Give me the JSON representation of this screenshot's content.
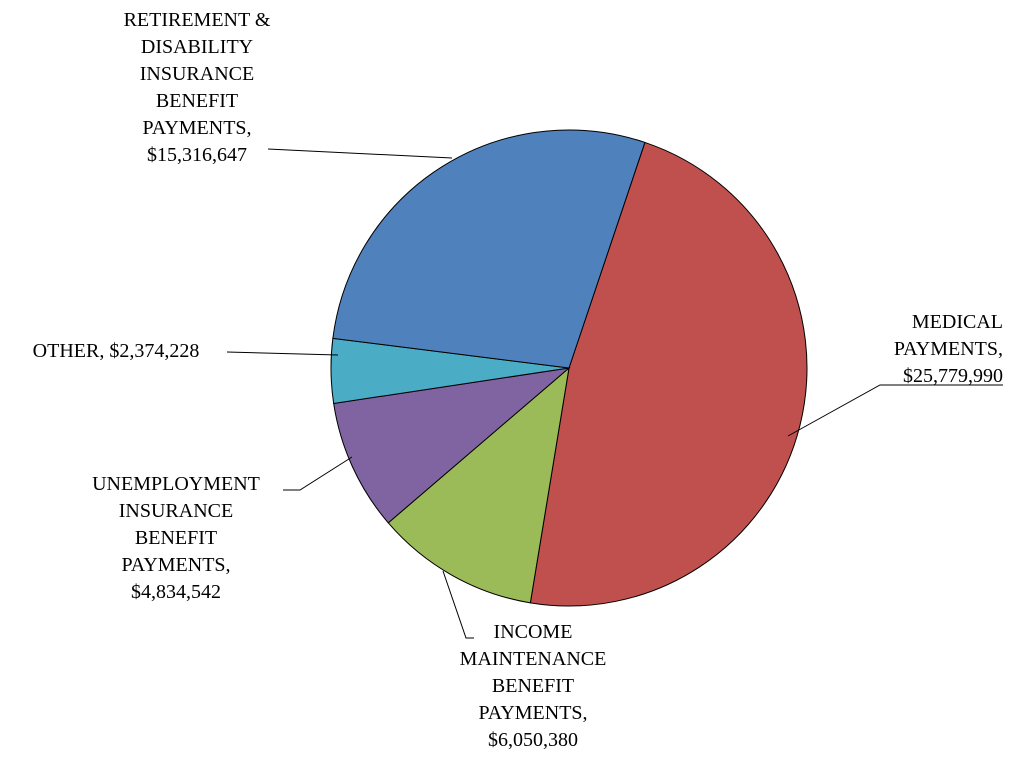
{
  "chart_data": {
    "type": "pie",
    "title": "",
    "slices": [
      {
        "name": "MEDICAL PAYMENTS",
        "value": 25779990,
        "color": "#C0504D",
        "label_lines": [
          "MEDICAL",
          "PAYMENTS,",
          "$25,779,990"
        ]
      },
      {
        "name": "INCOME MAINTENANCE BENEFIT PAYMENTS",
        "value": 6050380,
        "color": "#9BBB59",
        "label_lines": [
          "INCOME",
          "MAINTENANCE",
          "BENEFIT",
          "PAYMENTS,",
          "$6,050,380"
        ]
      },
      {
        "name": "UNEMPLOYMENT INSURANCE BENEFIT PAYMENTS",
        "value": 4834542,
        "color": "#8064A2",
        "label_lines": [
          "UNEMPLOYMENT",
          "INSURANCE",
          "BENEFIT",
          "PAYMENTS,",
          "$4,834,542"
        ]
      },
      {
        "name": "OTHER",
        "value": 2374228,
        "color": "#4BACC6",
        "label_lines": [
          "OTHER,  $2,374,228"
        ]
      },
      {
        "name": "RETIREMENT & DISABILITY INSURANCE BENEFIT PAYMENTS",
        "value": 15316647,
        "color": "#4F81BD",
        "label_lines": [
          "RETIREMENT  &",
          "DISABILITY",
          "INSURANCE",
          "BENEFIT",
          "PAYMENTS,",
          "$15,316,647"
        ]
      }
    ]
  }
}
